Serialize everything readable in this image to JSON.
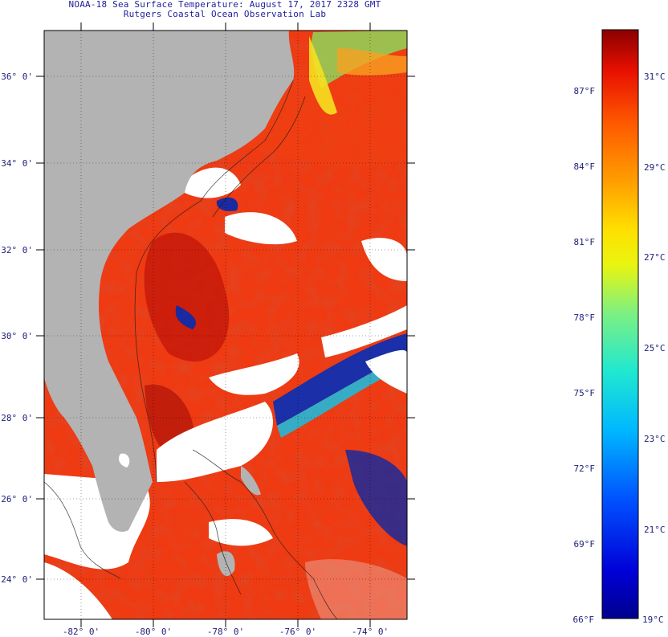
{
  "header": {
    "title_line1": "NOAA-18 Sea Surface Temperature:  August 17, 2017 2328 GMT",
    "title_line2": "Rutgers Coastal Ocean Observation Lab"
  },
  "map": {
    "lat_labels": [
      "36° 0'",
      "34° 0'",
      "32° 0'",
      "30° 0'",
      "28° 0'",
      "26° 0'",
      "24° 0'"
    ],
    "lon_labels": [
      "-82° 0'",
      "-80° 0'",
      "-78° 0'",
      "-76° 0'",
      "-74° 0'"
    ],
    "colors": {
      "land": "#b3b3b3",
      "cloud": "#ffffff",
      "warm_sea": "#f23a10",
      "hot_sea": "#c81a0c",
      "cool_sea": "#1a2aa0"
    }
  },
  "colorbar": {
    "fahrenheit_labels": [
      "87°F",
      "84°F",
      "81°F",
      "78°F",
      "75°F",
      "72°F",
      "69°F",
      "66°F"
    ],
    "celsius_labels": [
      "31°C",
      "29°C",
      "27°C",
      "25°C",
      "23°C",
      "21°C",
      "19°C"
    ]
  }
}
